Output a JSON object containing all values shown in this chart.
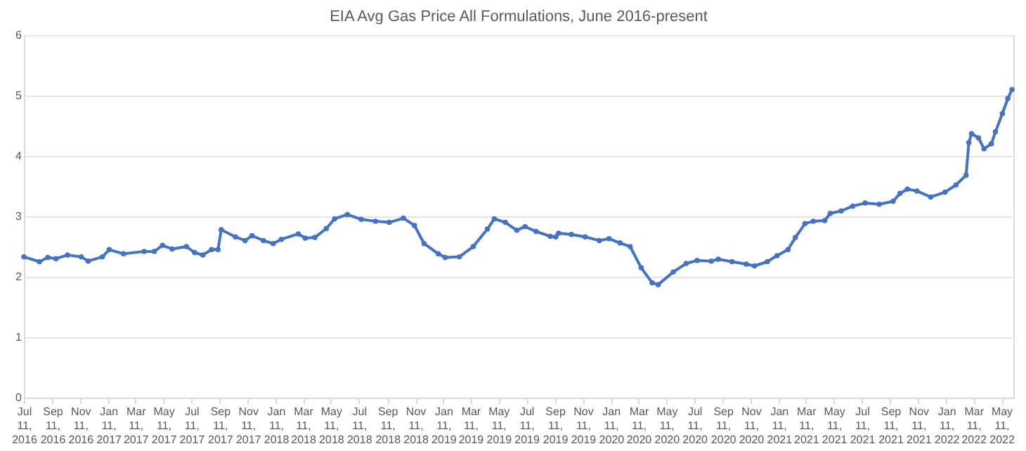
{
  "chart_data": {
    "type": "line",
    "title": "EIA Avg Gas Price All Formulations, June 2016-present",
    "x": [
      "2016-07-11",
      "2016-08-14",
      "2016-09-01",
      "2016-09-19",
      "2016-10-14",
      "2016-11-13",
      "2016-11-28",
      "2016-12-29",
      "2017-01-13",
      "2017-02-13",
      "2017-03-30",
      "2017-04-21",
      "2017-05-09",
      "2017-05-30",
      "2017-06-30",
      "2017-07-18",
      "2017-08-05",
      "2017-08-24",
      "2017-09-07",
      "2017-09-14",
      "2017-10-15",
      "2017-11-05",
      "2017-11-20",
      "2017-12-15",
      "2018-01-05",
      "2018-01-23",
      "2018-03-01",
      "2018-03-16",
      "2018-04-06",
      "2018-05-01",
      "2018-05-19",
      "2018-06-16",
      "2018-07-16",
      "2018-08-16",
      "2018-09-15",
      "2018-10-16",
      "2018-11-09",
      "2018-11-30",
      "2018-12-31",
      "2019-01-15",
      "2019-02-15",
      "2019-03-17",
      "2019-04-17",
      "2019-05-02",
      "2019-05-26",
      "2019-06-20",
      "2019-07-08",
      "2019-08-01",
      "2019-09-01",
      "2019-09-13",
      "2019-09-19",
      "2019-10-17",
      "2019-11-16",
      "2019-12-17",
      "2020-01-07",
      "2020-01-31",
      "2020-02-22",
      "2020-03-17",
      "2020-04-10",
      "2020-04-23",
      "2020-05-26",
      "2020-06-23",
      "2020-07-17",
      "2020-08-17",
      "2020-09-01",
      "2020-10-01",
      "2020-11-01",
      "2020-11-19",
      "2020-12-17",
      "2021-01-07",
      "2021-01-31",
      "2021-02-16",
      "2021-03-09",
      "2021-03-27",
      "2021-04-21",
      "2021-05-03",
      "2021-05-27",
      "2021-06-21",
      "2021-07-18",
      "2021-08-18",
      "2021-09-17",
      "2021-10-02",
      "2021-10-18",
      "2021-11-08",
      "2021-12-08",
      "2022-01-08",
      "2022-02-01",
      "2022-02-23",
      "2022-03-01",
      "2022-03-07",
      "2022-03-22",
      "2022-04-03",
      "2022-04-19",
      "2022-04-28",
      "2022-05-13",
      "2022-05-25",
      "2022-06-03"
    ],
    "series": [
      {
        "color": "#4472c4",
        "values": [
          2.33,
          2.25,
          2.32,
          2.3,
          2.36,
          2.33,
          2.26,
          2.33,
          2.45,
          2.38,
          2.42,
          2.42,
          2.52,
          2.46,
          2.5,
          2.4,
          2.36,
          2.45,
          2.45,
          2.78,
          2.66,
          2.6,
          2.68,
          2.6,
          2.55,
          2.62,
          2.71,
          2.64,
          2.65,
          2.8,
          2.96,
          3.03,
          2.95,
          2.92,
          2.9,
          2.97,
          2.85,
          2.55,
          2.38,
          2.32,
          2.33,
          2.5,
          2.79,
          2.96,
          2.9,
          2.77,
          2.83,
          2.75,
          2.67,
          2.66,
          2.72,
          2.7,
          2.66,
          2.6,
          2.63,
          2.56,
          2.5,
          2.15,
          1.9,
          1.87,
          2.08,
          2.22,
          2.27,
          2.26,
          2.29,
          2.25,
          2.21,
          2.18,
          2.25,
          2.35,
          2.45,
          2.65,
          2.88,
          2.92,
          2.93,
          3.05,
          3.09,
          3.17,
          3.22,
          3.2,
          3.25,
          3.38,
          3.45,
          3.42,
          3.32,
          3.4,
          3.52,
          3.68,
          4.22,
          4.37,
          4.3,
          4.12,
          4.2,
          4.4,
          4.7,
          4.95,
          5.1
        ]
      }
    ],
    "xlim": [
      "2016-07-11",
      "2022-06-06"
    ],
    "xticks": [
      {
        "value": "2016-07-11",
        "label": "Jul 11, 2016"
      },
      {
        "value": "2016-09-11",
        "label": "Sep 11, 2016"
      },
      {
        "value": "2016-11-11",
        "label": "Nov 11, 2016"
      },
      {
        "value": "2017-01-11",
        "label": "Jan 11, 2017"
      },
      {
        "value": "2017-03-11",
        "label": "Mar 11, 2017"
      },
      {
        "value": "2017-05-11",
        "label": "May 11, 2017"
      },
      {
        "value": "2017-07-11",
        "label": "Jul 11, 2017"
      },
      {
        "value": "2017-09-11",
        "label": "Sep 11, 2017"
      },
      {
        "value": "2017-11-11",
        "label": "Nov 11, 2017"
      },
      {
        "value": "2018-01-11",
        "label": "Jan 11, 2018"
      },
      {
        "value": "2018-03-11",
        "label": "Mar 11, 2018"
      },
      {
        "value": "2018-05-11",
        "label": "May 11, 2018"
      },
      {
        "value": "2018-07-11",
        "label": "Jul 11, 2018"
      },
      {
        "value": "2018-09-11",
        "label": "Sep 11, 2018"
      },
      {
        "value": "2018-11-11",
        "label": "Nov 11, 2018"
      },
      {
        "value": "2019-01-11",
        "label": "Jan 11, 2019"
      },
      {
        "value": "2019-03-11",
        "label": "Mar 11, 2019"
      },
      {
        "value": "2019-05-11",
        "label": "May 11, 2019"
      },
      {
        "value": "2019-07-11",
        "label": "Jul 11, 2019"
      },
      {
        "value": "2019-09-11",
        "label": "Sep 11, 2019"
      },
      {
        "value": "2019-11-11",
        "label": "Nov 11, 2019"
      },
      {
        "value": "2020-01-11",
        "label": "Jan 11, 2020"
      },
      {
        "value": "2020-03-11",
        "label": "Mar 11, 2020"
      },
      {
        "value": "2020-05-11",
        "label": "May 11, 2020"
      },
      {
        "value": "2020-07-11",
        "label": "Jul 11, 2020"
      },
      {
        "value": "2020-09-11",
        "label": "Sep 11, 2020"
      },
      {
        "value": "2020-11-11",
        "label": "Nov 11, 2020"
      },
      {
        "value": "2021-01-11",
        "label": "Jan 11, 2021"
      },
      {
        "value": "2021-03-11",
        "label": "Mar 11, 2021"
      },
      {
        "value": "2021-05-11",
        "label": "May 11, 2021"
      },
      {
        "value": "2021-07-11",
        "label": "Jul 11, 2021"
      },
      {
        "value": "2021-09-11",
        "label": "Sep 11, 2021"
      },
      {
        "value": "2021-11-11",
        "label": "Nov 11, 2021"
      },
      {
        "value": "2022-01-11",
        "label": "Jan 11, 2022"
      },
      {
        "value": "2022-03-11",
        "label": "Mar 11, 2022"
      },
      {
        "value": "2022-05-11",
        "label": "May 11, 2022"
      }
    ],
    "ylim": [
      0,
      6
    ],
    "yticks": [
      0,
      1,
      2,
      3,
      4,
      5,
      6
    ],
    "grid": "y",
    "marker": "circle",
    "line_style": "solid"
  }
}
